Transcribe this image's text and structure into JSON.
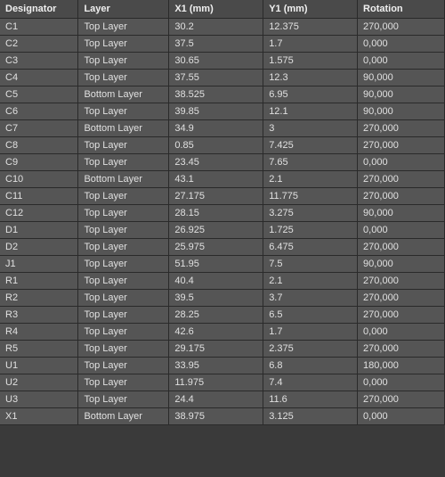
{
  "table": {
    "columns": [
      {
        "key": "designator",
        "label": "Designator",
        "class": "col-designator"
      },
      {
        "key": "layer",
        "label": "Layer",
        "class": "col-layer"
      },
      {
        "key": "x1",
        "label": "X1 (mm)",
        "class": "col-x1"
      },
      {
        "key": "y1",
        "label": "Y1 (mm)",
        "class": "col-y1"
      },
      {
        "key": "rotation",
        "label": "Rotation",
        "class": "col-rotation"
      }
    ],
    "rows": [
      {
        "designator": "C1",
        "layer": "Top Layer",
        "x1": "30.2",
        "y1": "12.375",
        "rotation": "270,000"
      },
      {
        "designator": "C2",
        "layer": "Top Layer",
        "x1": "37.5",
        "y1": "1.7",
        "rotation": "0,000"
      },
      {
        "designator": "C3",
        "layer": "Top Layer",
        "x1": "30.65",
        "y1": "1.575",
        "rotation": "0,000"
      },
      {
        "designator": "C4",
        "layer": "Top Layer",
        "x1": "37.55",
        "y1": "12.3",
        "rotation": "90,000"
      },
      {
        "designator": "C5",
        "layer": "Bottom Layer",
        "x1": "38.525",
        "y1": "6.95",
        "rotation": "90,000"
      },
      {
        "designator": "C6",
        "layer": "Top Layer",
        "x1": "39.85",
        "y1": "12.1",
        "rotation": "90,000"
      },
      {
        "designator": "C7",
        "layer": "Bottom Layer",
        "x1": "34.9",
        "y1": "3",
        "rotation": "270,000"
      },
      {
        "designator": "C8",
        "layer": "Top Layer",
        "x1": "0.85",
        "y1": "7.425",
        "rotation": "270,000"
      },
      {
        "designator": "C9",
        "layer": "Top Layer",
        "x1": "23.45",
        "y1": "7.65",
        "rotation": "0,000"
      },
      {
        "designator": "C10",
        "layer": "Bottom Layer",
        "x1": "43.1",
        "y1": "2.1",
        "rotation": "270,000"
      },
      {
        "designator": "C11",
        "layer": "Top Layer",
        "x1": "27.175",
        "y1": "11.775",
        "rotation": "270,000"
      },
      {
        "designator": "C12",
        "layer": "Top Layer",
        "x1": "28.15",
        "y1": "3.275",
        "rotation": "90,000"
      },
      {
        "designator": "D1",
        "layer": "Top Layer",
        "x1": "26.925",
        "y1": "1.725",
        "rotation": "0,000"
      },
      {
        "designator": "D2",
        "layer": "Top Layer",
        "x1": "25.975",
        "y1": "6.475",
        "rotation": "270,000"
      },
      {
        "designator": "J1",
        "layer": "Top Layer",
        "x1": "51.95",
        "y1": "7.5",
        "rotation": "90,000"
      },
      {
        "designator": "R1",
        "layer": "Top Layer",
        "x1": "40.4",
        "y1": "2.1",
        "rotation": "270,000"
      },
      {
        "designator": "R2",
        "layer": "Top Layer",
        "x1": "39.5",
        "y1": "3.7",
        "rotation": "270,000"
      },
      {
        "designator": "R3",
        "layer": "Top Layer",
        "x1": "28.25",
        "y1": "6.5",
        "rotation": "270,000"
      },
      {
        "designator": "R4",
        "layer": "Top Layer",
        "x1": "42.6",
        "y1": "1.7",
        "rotation": "0,000"
      },
      {
        "designator": "R5",
        "layer": "Top Layer",
        "x1": "29.175",
        "y1": "2.375",
        "rotation": "270,000"
      },
      {
        "designator": "U1",
        "layer": "Top Layer",
        "x1": "33.95",
        "y1": "6.8",
        "rotation": "180,000"
      },
      {
        "designator": "U2",
        "layer": "Top Layer",
        "x1": "11.975",
        "y1": "7.4",
        "rotation": "0,000"
      },
      {
        "designator": "U3",
        "layer": "Top Layer",
        "x1": "24.4",
        "y1": "11.6",
        "rotation": "270,000"
      },
      {
        "designator": "X1",
        "layer": "Bottom Layer",
        "x1": "38.975",
        "y1": "3.125",
        "rotation": "0,000"
      }
    ]
  },
  "colors": {
    "header_bg": "#4a4a4a",
    "row_bg": "#555555",
    "border": "#2a2a2a",
    "text": "#e0e0e0"
  }
}
